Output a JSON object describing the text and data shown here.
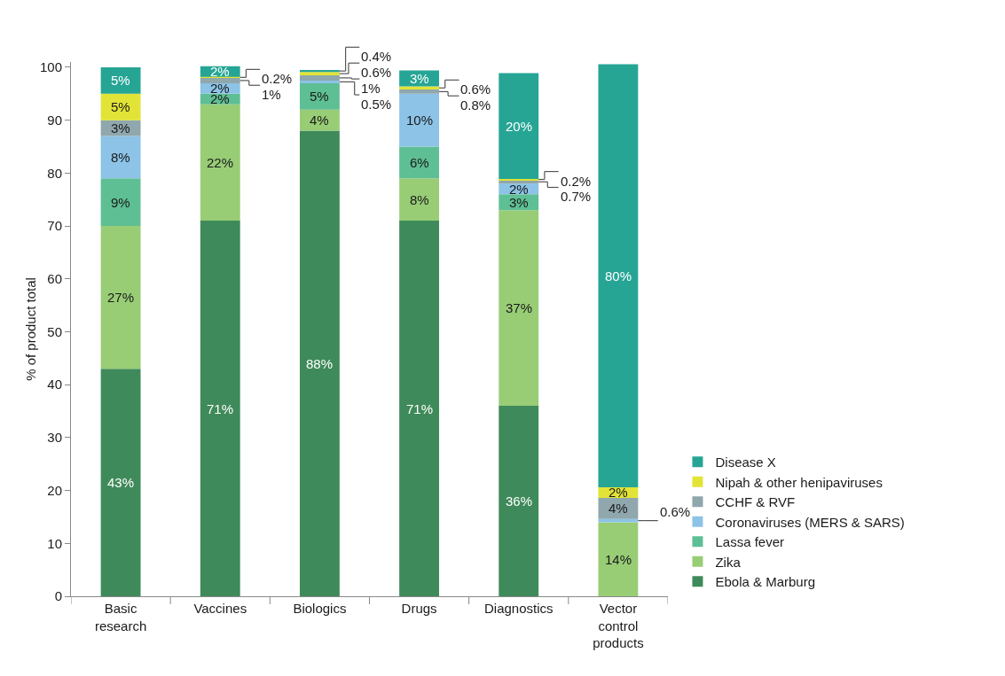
{
  "chart_data": {
    "type": "bar",
    "stacked": true,
    "ylabel": "% of product total",
    "categories": [
      "Basic research",
      "Vaccines",
      "Biologics",
      "Drugs",
      "Diagnostics",
      "Vector control products"
    ],
    "series": [
      {
        "name": "Ebola & Marburg",
        "color": "#3f8a5a",
        "values": [
          43,
          71,
          88,
          71,
          36,
          0
        ],
        "value_labels": [
          "43%",
          "71%",
          "88%",
          "71%",
          "36%",
          null
        ]
      },
      {
        "name": "Zika",
        "color": "#98cd76",
        "values": [
          27,
          22,
          4,
          8,
          37,
          14
        ],
        "value_labels": [
          "27%",
          "22%",
          "4%",
          "8%",
          "37%",
          "14%"
        ]
      },
      {
        "name": "Lassa fever",
        "color": "#5fbf94",
        "values": [
          9,
          2,
          5,
          6,
          3,
          0
        ],
        "value_labels": [
          "9%",
          "2%",
          "5%",
          "6%",
          "3%",
          null
        ]
      },
      {
        "name": "Coronaviruses (MERS & SARS)",
        "color": "#8cc3e6",
        "values": [
          8,
          2,
          0.5,
          10,
          2,
          0.6
        ],
        "value_labels": [
          "8%",
          "2%",
          "0.5%",
          "10%",
          "2%",
          "0.6%"
        ]
      },
      {
        "name": "CCHF & RVF",
        "color": "#8fa7ad",
        "values": [
          3,
          1,
          1,
          0.8,
          0.7,
          4
        ],
        "value_labels": [
          "3%",
          "1%",
          "1%",
          "0.8%",
          "0.7%",
          "4%"
        ]
      },
      {
        "name": "Nipah & other henipaviruses",
        "color": "#e2e337",
        "values": [
          5,
          0.2,
          0.6,
          0.6,
          0.2,
          2
        ],
        "value_labels": [
          "5%",
          "0.2%",
          "0.6%",
          "0.6%",
          "0.2%",
          "2%"
        ]
      },
      {
        "name": "Disease X",
        "color": "#26a595",
        "values": [
          5,
          2,
          0.4,
          3,
          20,
          80
        ],
        "value_labels": [
          "5%",
          "2%",
          "0.4%",
          "3%",
          "20%",
          "80%"
        ]
      }
    ],
    "ylim": [
      0,
      101
    ],
    "yticks": [
      0,
      10,
      20,
      30,
      40,
      50,
      60,
      70,
      80,
      90,
      100
    ],
    "grid": false,
    "legend": "bottom right"
  }
}
